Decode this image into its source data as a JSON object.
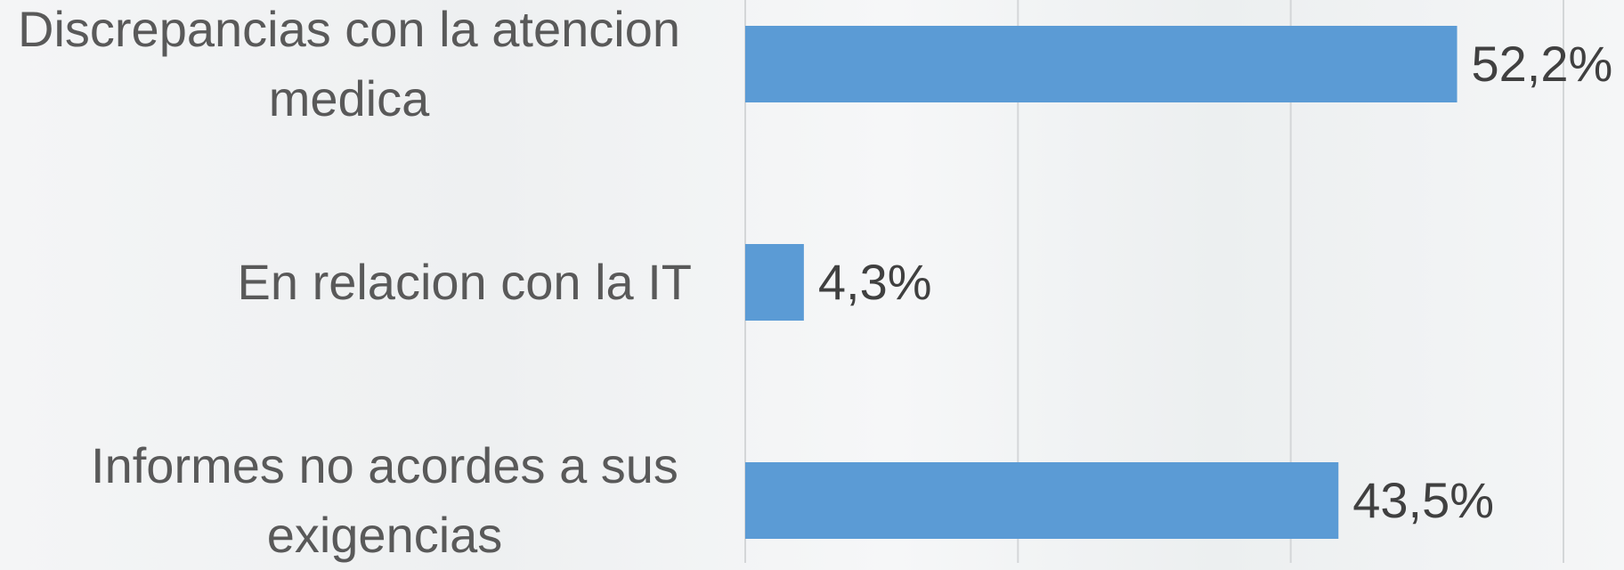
{
  "chart_data": {
    "type": "bar",
    "orientation": "horizontal",
    "categories": [
      "Discrepancias con la atencion medica",
      "En relacion con la IT",
      "Informes no acordes a sus exigencias"
    ],
    "values": [
      52.2,
      4.3,
      43.5
    ],
    "value_labels": [
      "52,2%",
      "4,3%",
      "43,5%"
    ],
    "color": "#5b9bd5",
    "xlim": [
      0,
      60
    ],
    "xticks": [
      0,
      20,
      40,
      60
    ],
    "grid": true
  }
}
